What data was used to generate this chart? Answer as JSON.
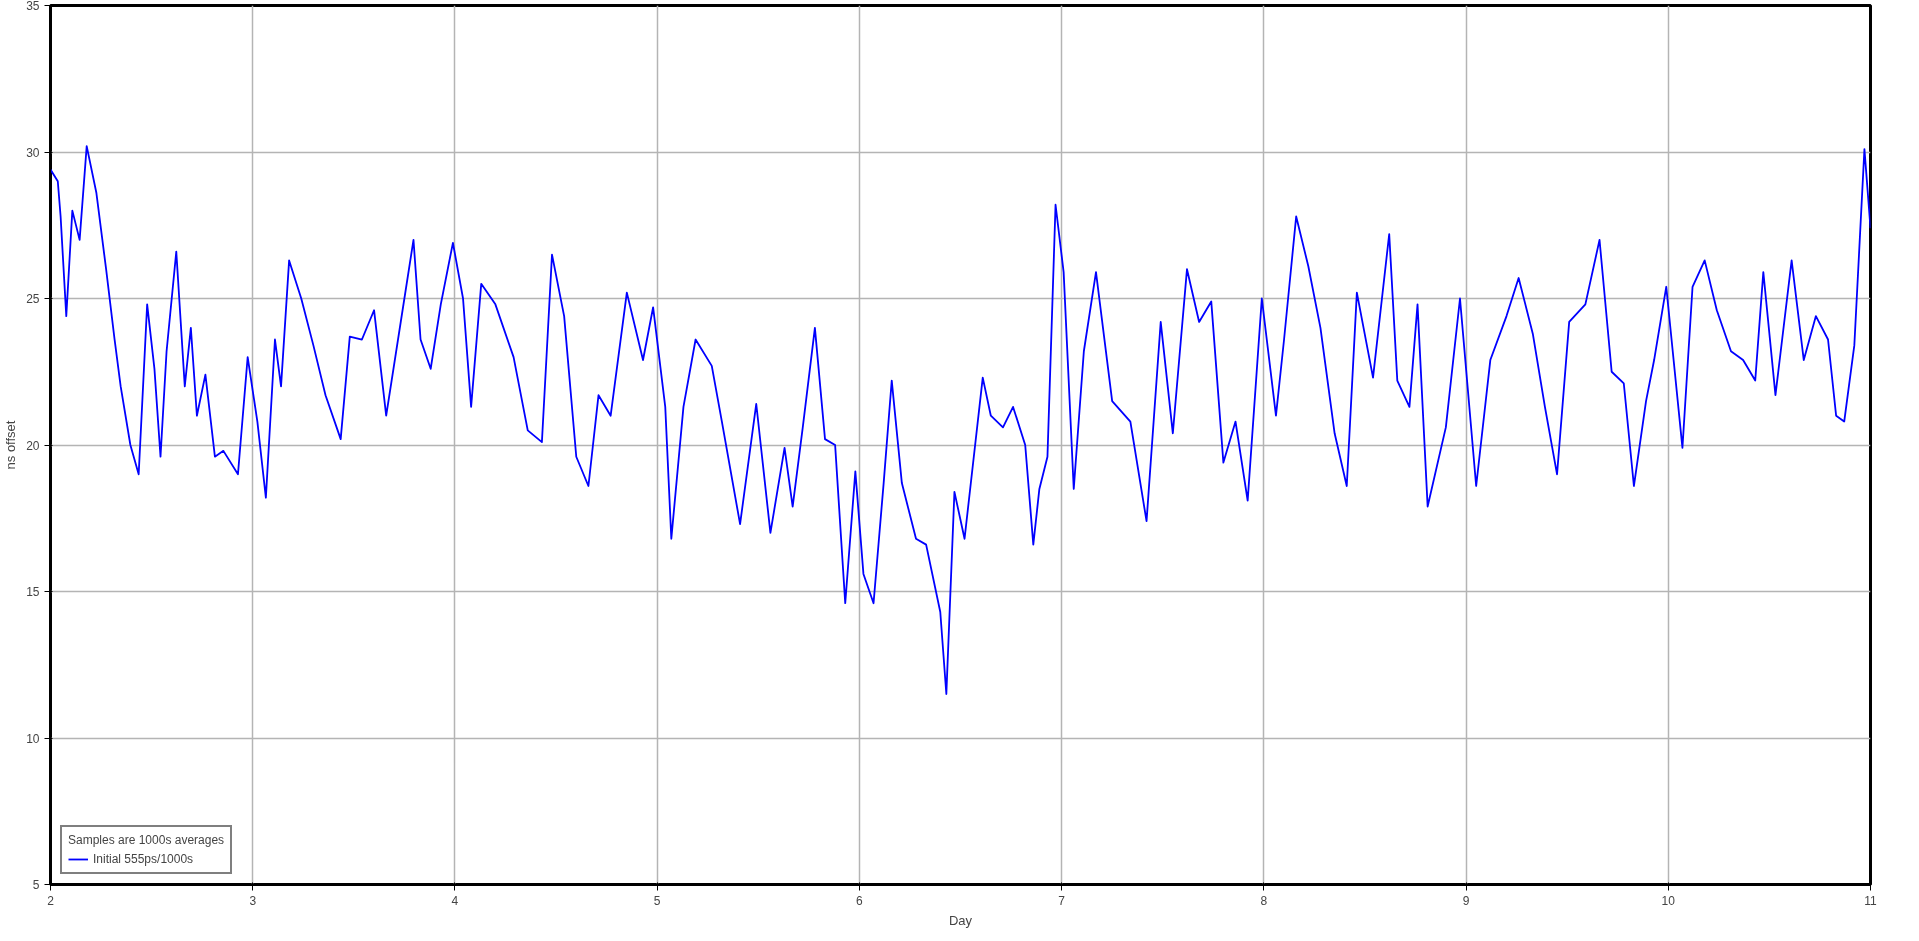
{
  "chart_data": {
    "type": "line",
    "xlabel": "Day",
    "ylabel": "ns offset",
    "legend_title": "Samples are 1000s averages",
    "xlim": [
      2,
      11
    ],
    "ylim": [
      5,
      35
    ],
    "xticks": [
      2,
      3,
      4,
      5,
      6,
      7,
      8,
      9,
      10,
      11
    ],
    "yticks": [
      5,
      10,
      15,
      20,
      25,
      30,
      35
    ],
    "grid": true,
    "legend": "bottom left",
    "line_style": "solid",
    "series": [
      {
        "name": "Initial 555ps/1000s",
        "color": "#0000ff",
        "x": [
          2.0,
          2.036,
          2.05,
          2.078,
          2.108,
          2.144,
          2.179,
          2.227,
          2.275,
          2.317,
          2.347,
          2.395,
          2.436,
          2.478,
          2.514,
          2.544,
          2.574,
          2.622,
          2.664,
          2.694,
          2.724,
          2.766,
          2.813,
          2.855,
          2.927,
          2.975,
          3.023,
          3.065,
          3.11,
          3.14,
          3.18,
          3.24,
          3.3,
          3.36,
          3.435,
          3.48,
          3.54,
          3.6,
          3.66,
          3.75,
          3.795,
          3.83,
          3.88,
          3.93,
          3.99,
          4.04,
          4.08,
          4.13,
          4.2,
          4.29,
          4.36,
          4.43,
          4.48,
          4.54,
          4.6,
          4.66,
          4.71,
          4.77,
          4.85,
          4.93,
          4.98,
          5.04,
          5.07,
          5.13,
          5.19,
          5.27,
          5.32,
          5.41,
          5.49,
          5.56,
          5.63,
          5.67,
          5.72,
          5.78,
          5.83,
          5.88,
          5.93,
          5.98,
          6.02,
          6.07,
          6.12,
          6.16,
          6.21,
          6.28,
          6.33,
          6.4,
          6.43,
          6.47,
          6.52,
          6.61,
          6.65,
          6.71,
          6.76,
          6.82,
          6.86,
          6.89,
          6.93,
          6.97,
          7.01,
          7.06,
          7.11,
          7.17,
          7.25,
          7.34,
          7.42,
          7.49,
          7.55,
          7.62,
          7.68,
          7.74,
          7.8,
          7.86,
          7.92,
          7.99,
          8.06,
          8.1,
          8.16,
          8.22,
          8.28,
          8.35,
          8.41,
          8.46,
          8.54,
          8.62,
          8.66,
          8.72,
          8.76,
          8.81,
          8.9,
          8.97,
          9.05,
          9.12,
          9.2,
          9.26,
          9.33,
          9.39,
          9.45,
          9.51,
          9.59,
          9.66,
          9.72,
          9.78,
          9.83,
          9.89,
          9.93,
          9.99,
          10.07,
          10.12,
          10.18,
          10.24,
          10.31,
          10.37,
          10.43,
          10.47,
          10.53,
          10.61,
          10.67,
          10.73,
          10.79,
          10.83,
          10.87,
          10.92,
          10.97,
          11.0
        ],
        "values": [
          29.4,
          29.0,
          27.8,
          24.4,
          28.0,
          27.0,
          30.2,
          28.6,
          26.0,
          23.6,
          22.0,
          20.0,
          19.0,
          24.8,
          22.6,
          19.6,
          23.2,
          26.6,
          22.0,
          24.0,
          21.0,
          22.4,
          19.6,
          19.8,
          19.0,
          23.0,
          20.8,
          18.2,
          23.6,
          22.0,
          26.3,
          25.0,
          23.4,
          21.7,
          20.2,
          23.7,
          23.6,
          24.6,
          21.0,
          25.0,
          27.0,
          23.6,
          22.6,
          24.8,
          26.9,
          25.0,
          21.3,
          25.5,
          24.8,
          23.0,
          20.5,
          20.1,
          26.5,
          24.4,
          19.6,
          18.6,
          21.7,
          21.0,
          25.2,
          22.9,
          24.7,
          21.3,
          16.8,
          21.3,
          23.6,
          22.7,
          20.8,
          17.3,
          21.4,
          17.0,
          19.9,
          17.9,
          20.6,
          24.0,
          20.2,
          20.0,
          14.6,
          19.1,
          15.6,
          14.6,
          18.7,
          22.2,
          18.7,
          16.8,
          16.6,
          14.3,
          11.5,
          18.4,
          16.8,
          22.3,
          21.0,
          20.6,
          21.3,
          20.0,
          16.6,
          18.5,
          19.6,
          28.2,
          25.9,
          18.5,
          23.2,
          25.9,
          21.5,
          20.8,
          17.4,
          24.2,
          20.4,
          26.0,
          24.2,
          24.9,
          19.4,
          20.8,
          18.1,
          25.0,
          21.0,
          23.6,
          27.8,
          26.1,
          24.0,
          20.4,
          18.6,
          25.2,
          22.3,
          27.2,
          22.2,
          21.3,
          24.8,
          17.9,
          20.6,
          25.0,
          18.6,
          22.9,
          24.4,
          25.7,
          23.8,
          21.3,
          19.0,
          24.2,
          24.8,
          27.0,
          22.5,
          22.1,
          18.6,
          21.5,
          22.9,
          25.4,
          19.9,
          25.4,
          26.3,
          24.6,
          23.2,
          22.9,
          22.2,
          25.9,
          21.7,
          26.3,
          22.9,
          24.4,
          23.6,
          21.0,
          20.8,
          23.4,
          30.1,
          27.4
        ]
      }
    ]
  }
}
